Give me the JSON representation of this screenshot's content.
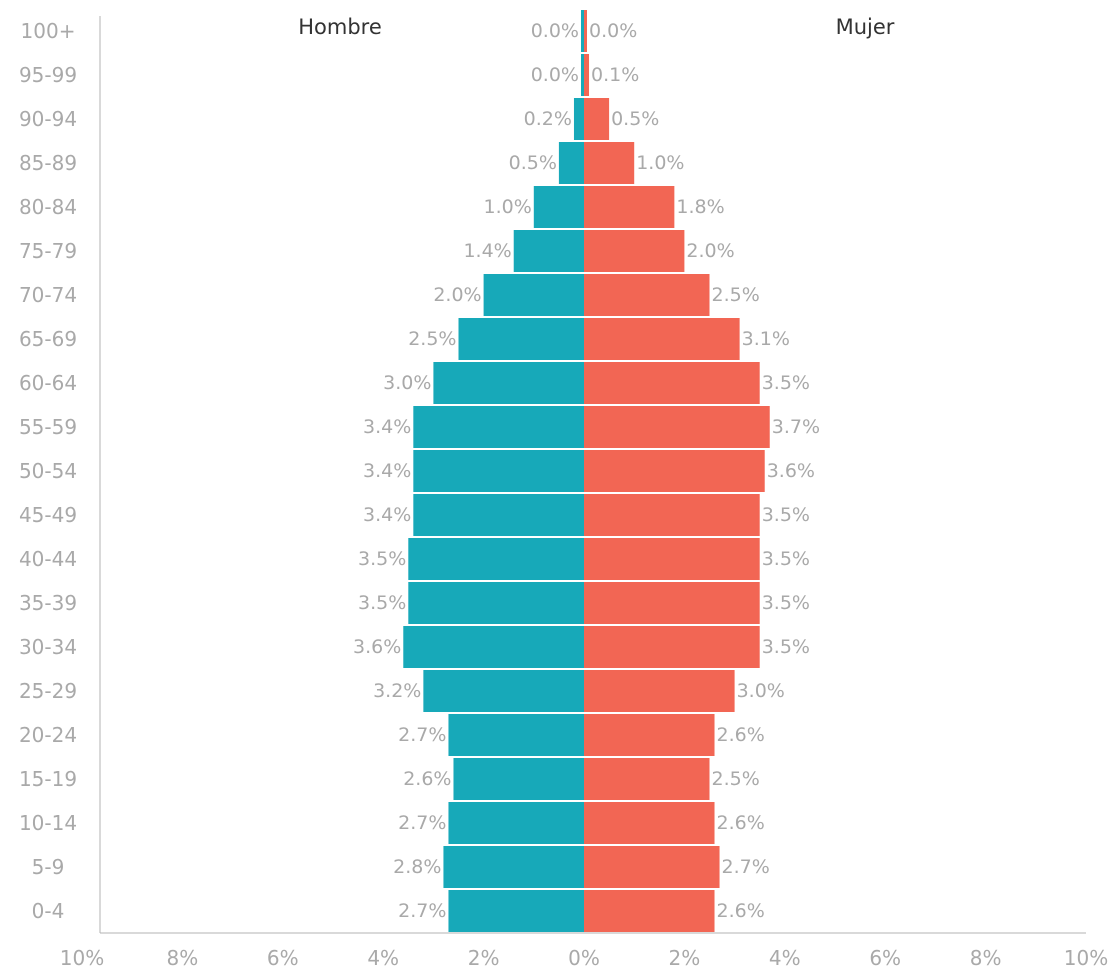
{
  "chart_data": {
    "type": "bar",
    "orientation": "horizontal",
    "subtype": "population-pyramid",
    "categories": [
      "0-4",
      "5-9",
      "10-14",
      "15-19",
      "20-24",
      "25-29",
      "30-34",
      "35-39",
      "40-44",
      "45-49",
      "50-54",
      "55-59",
      "60-64",
      "65-69",
      "70-74",
      "75-79",
      "80-84",
      "85-89",
      "90-94",
      "95-99",
      "100+"
    ],
    "series": [
      {
        "name": "Hombre",
        "side": "left",
        "color": "#17a9b9",
        "values": [
          2.7,
          2.8,
          2.7,
          2.6,
          2.7,
          3.2,
          3.6,
          3.5,
          3.5,
          3.4,
          3.4,
          3.4,
          3.0,
          2.5,
          2.0,
          1.4,
          1.0,
          0.5,
          0.2,
          0.0,
          0.0
        ],
        "labels": [
          "2.7%",
          "2.8%",
          "2.7%",
          "2.6%",
          "2.7%",
          "3.2%",
          "3.6%",
          "3.5%",
          "3.5%",
          "3.4%",
          "3.4%",
          "3.4%",
          "3.0%",
          "2.5%",
          "2.0%",
          "1.4%",
          "1.0%",
          "0.5%",
          "0.2%",
          "0.0%",
          "0.0%"
        ]
      },
      {
        "name": "Mujer",
        "side": "right",
        "color": "#f26654",
        "values": [
          2.6,
          2.7,
          2.6,
          2.5,
          2.6,
          3.0,
          3.5,
          3.5,
          3.5,
          3.5,
          3.6,
          3.7,
          3.5,
          3.1,
          2.5,
          2.0,
          1.8,
          1.0,
          0.5,
          0.1,
          0.0
        ],
        "labels": [
          "2.6%",
          "2.7%",
          "2.6%",
          "2.5%",
          "2.6%",
          "3.0%",
          "3.5%",
          "3.5%",
          "3.5%",
          "3.5%",
          "3.6%",
          "3.7%",
          "3.5%",
          "3.1%",
          "2.5%",
          "2.0%",
          "1.8%",
          "1.0%",
          "0.5%",
          "0.1%",
          "0.0%"
        ]
      }
    ],
    "xlim": [
      -10,
      10
    ],
    "xticks": [
      -10,
      -8,
      -6,
      -4,
      -2,
      0,
      2,
      4,
      6,
      8,
      10
    ],
    "xtick_labels": [
      "10%",
      "8%",
      "6%",
      "4%",
      "2%",
      "0%",
      "2%",
      "4%",
      "6%",
      "8%",
      "10%"
    ],
    "title": "",
    "xlabel": "",
    "ylabel": "",
    "grid": false,
    "legend": "series names printed above bars (Hombre left, Mujer right)"
  }
}
